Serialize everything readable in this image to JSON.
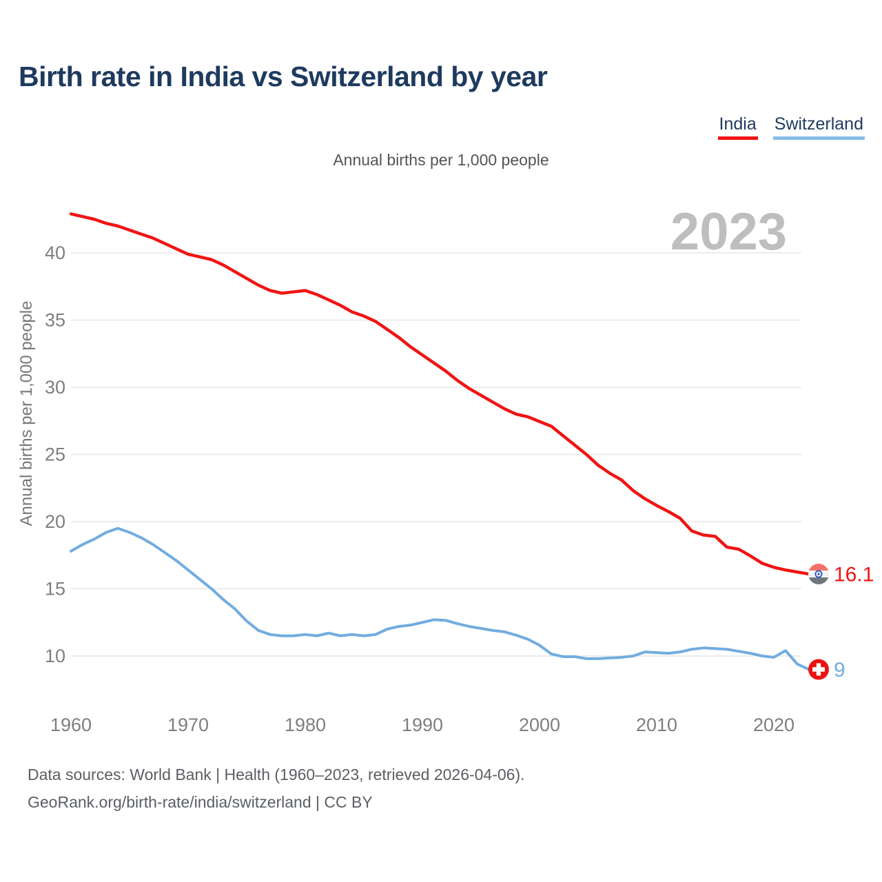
{
  "header": {
    "title": "Birth rate in India vs Switzerland by year"
  },
  "legend": {
    "items": [
      {
        "label": "India",
        "color": "#f01414"
      },
      {
        "label": "Switzerland",
        "color": "#85bce9"
      }
    ]
  },
  "subtitle": "Annual births per 1,000 people",
  "watermark": "2023",
  "footer": {
    "line1": "Data sources: World Bank | Health (1960–2023, retrieved 2026-04-06).",
    "line2": "GeoRank.org/birth-rate/india/switzerland | CC BY"
  },
  "chart_data": {
    "type": "line",
    "title": "Birth rate in India vs Switzerland by year",
    "xlabel": "",
    "ylabel": "Annual births per 1,000 people",
    "xlim": [
      1960,
      2023
    ],
    "ylim": [
      9,
      43
    ],
    "yticks": [
      10,
      15,
      20,
      25,
      30,
      35,
      40
    ],
    "xticks": [
      1960,
      1970,
      1980,
      1990,
      2000,
      2010,
      2020
    ],
    "grid": "horizontal",
    "legend_position": "top-right",
    "x": [
      1960,
      1961,
      1962,
      1963,
      1964,
      1965,
      1966,
      1967,
      1968,
      1969,
      1970,
      1971,
      1972,
      1973,
      1974,
      1975,
      1976,
      1977,
      1978,
      1979,
      1980,
      1981,
      1982,
      1983,
      1984,
      1985,
      1986,
      1987,
      1988,
      1989,
      1990,
      1991,
      1992,
      1993,
      1994,
      1995,
      1996,
      1997,
      1998,
      1999,
      2000,
      2001,
      2002,
      2003,
      2004,
      2005,
      2006,
      2007,
      2008,
      2009,
      2010,
      2011,
      2012,
      2013,
      2014,
      2015,
      2016,
      2017,
      2018,
      2019,
      2020,
      2021,
      2022,
      2023
    ],
    "series": [
      {
        "name": "India",
        "color": "#f01414",
        "flag": "india",
        "end_label": "16.1",
        "line_width": 4.5,
        "values": [
          42.9,
          42.7,
          42.5,
          42.2,
          42.0,
          41.7,
          41.4,
          41.1,
          40.7,
          40.3,
          39.9,
          39.7,
          39.5,
          39.1,
          38.6,
          38.1,
          37.6,
          37.2,
          37.0,
          37.1,
          37.2,
          36.9,
          36.5,
          36.1,
          35.6,
          35.3,
          34.9,
          34.3,
          33.7,
          33.0,
          32.4,
          31.8,
          31.2,
          30.5,
          29.9,
          29.4,
          28.9,
          28.4,
          28.0,
          27.8,
          27.45,
          27.1,
          26.4,
          25.7,
          25.0,
          24.2,
          23.6,
          23.1,
          22.3,
          21.7,
          21.2,
          20.75,
          20.25,
          19.3,
          19.0,
          18.9,
          18.1,
          17.95,
          17.45,
          16.9,
          16.6,
          16.4,
          16.25,
          16.1
        ]
      },
      {
        "name": "Switzerland",
        "color": "#72acdf",
        "flag": "switzerland",
        "end_label": "9",
        "line_width": 4,
        "values": [
          17.8,
          18.3,
          18.7,
          19.2,
          19.5,
          19.2,
          18.8,
          18.3,
          17.7,
          17.1,
          16.4,
          15.7,
          15.0,
          14.2,
          13.5,
          12.6,
          11.9,
          11.6,
          11.5,
          11.5,
          11.6,
          11.5,
          11.7,
          11.5,
          11.6,
          11.5,
          11.6,
          12.0,
          12.2,
          12.3,
          12.5,
          12.7,
          12.65,
          12.4,
          12.2,
          12.05,
          11.9,
          11.8,
          11.55,
          11.25,
          10.8,
          10.15,
          9.95,
          9.95,
          9.8,
          9.8,
          9.85,
          9.9,
          10.0,
          10.3,
          10.25,
          10.2,
          10.3,
          10.5,
          10.6,
          10.55,
          10.5,
          10.35,
          10.2,
          10.0,
          9.9,
          10.4,
          9.4,
          9.0
        ]
      }
    ],
    "flags": {
      "india": {
        "top": "#f4716a",
        "middle": "#f2f3f4",
        "bottom": "#6f767d",
        "chakra": "#2d53c0"
      },
      "switzerland": {
        "bg": "#ec1313",
        "cross": "#ffffff"
      }
    }
  }
}
